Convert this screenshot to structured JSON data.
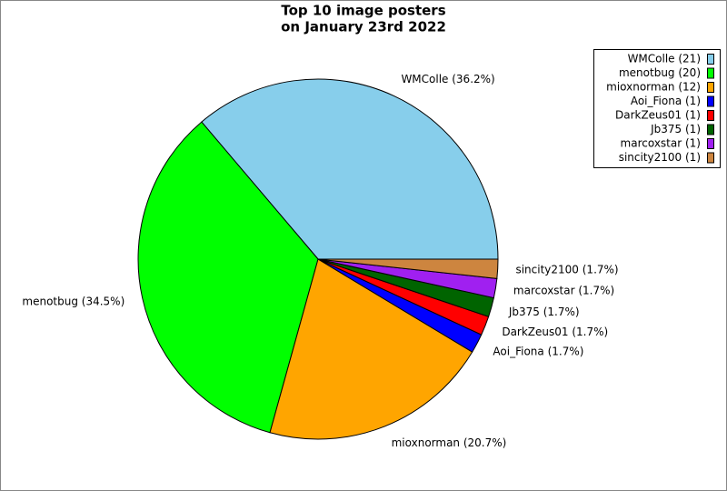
{
  "chart_data": {
    "type": "pie",
    "title": [
      "Top 10 image posters",
      "on January 23rd 2022"
    ],
    "categories": [
      "WMColle",
      "menotbug",
      "mioxnorman",
      "Aoi_Fiona",
      "DarkZeus01",
      "Jb375",
      "marcoxstar",
      "sincity2100"
    ],
    "values": [
      21,
      20,
      12,
      1,
      1,
      1,
      1,
      1
    ],
    "slice_labels": [
      "WMColle (36.2%)",
      "menotbug (34.5%)",
      "mioxnorman (20.7%)",
      "Aoi_Fiona (1.7%)",
      "DarkZeus01 (1.7%)",
      "Jb375 (1.7%)",
      "marcoxstar (1.7%)",
      "sincity2100 (1.7%)"
    ],
    "legend_labels": [
      "WMColle (21)",
      "menotbug (20)",
      "mioxnorman (12)",
      "Aoi_Fiona (1)",
      "DarkZeus01 (1)",
      "Jb375 (1)",
      "marcoxstar (1)",
      "sincity2100 (1)"
    ],
    "colors": [
      "#87ceeb",
      "#00ff00",
      "#ffa500",
      "#0000ff",
      "#ff0000",
      "#006400",
      "#a020f0",
      "#cd853f"
    ],
    "legend": "upper right"
  }
}
